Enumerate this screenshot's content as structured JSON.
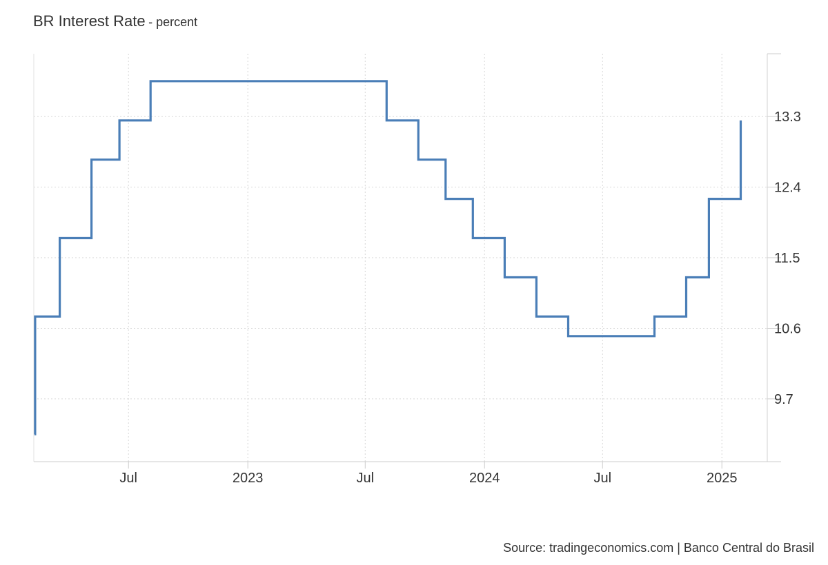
{
  "chart_data": {
    "type": "line",
    "title": "BR Interest Rate",
    "subtitle": "- percent",
    "source": "Source: tradingeconomics.com | Banco Central do Brasil",
    "xlabel": "",
    "ylabel": "",
    "step": true,
    "line_color": "#4a7eb7",
    "grid": true,
    "grid_style": "dotted",
    "y_axis_position": "right",
    "xlim": [
      "2022-02-05",
      "2025-03-12"
    ],
    "ylim": [
      8.9,
      14.1
    ],
    "x_ticks": [
      {
        "date": "2022-07-01",
        "label": "Jul"
      },
      {
        "date": "2023-01-01",
        "label": "2023"
      },
      {
        "date": "2023-07-01",
        "label": "Jul"
      },
      {
        "date": "2024-01-01",
        "label": "2024"
      },
      {
        "date": "2024-07-01",
        "label": "Jul"
      },
      {
        "date": "2025-01-01",
        "label": "2025"
      }
    ],
    "y_ticks": [
      {
        "value": 9.7,
        "label": "9.7"
      },
      {
        "value": 10.6,
        "label": "10.6"
      },
      {
        "value": 11.5,
        "label": "11.5"
      },
      {
        "value": 12.4,
        "label": "12.4"
      },
      {
        "value": 13.3,
        "label": "13.3"
      }
    ],
    "series": [
      {
        "x": [
          "2022-02-06",
          "2022-02-07",
          "2022-03-17",
          "2022-05-05",
          "2022-06-17",
          "2022-08-04",
          "2023-08-03",
          "2023-09-21",
          "2023-11-02",
          "2023-12-14",
          "2024-02-01",
          "2024-03-21",
          "2024-05-09",
          "2024-09-19",
          "2024-11-07",
          "2024-12-12",
          "2025-01-30"
        ],
        "y": [
          9.25,
          10.75,
          11.75,
          12.75,
          13.25,
          13.75,
          13.25,
          12.75,
          12.25,
          11.75,
          11.25,
          10.75,
          10.5,
          10.75,
          11.25,
          12.25,
          13.25
        ]
      }
    ]
  }
}
